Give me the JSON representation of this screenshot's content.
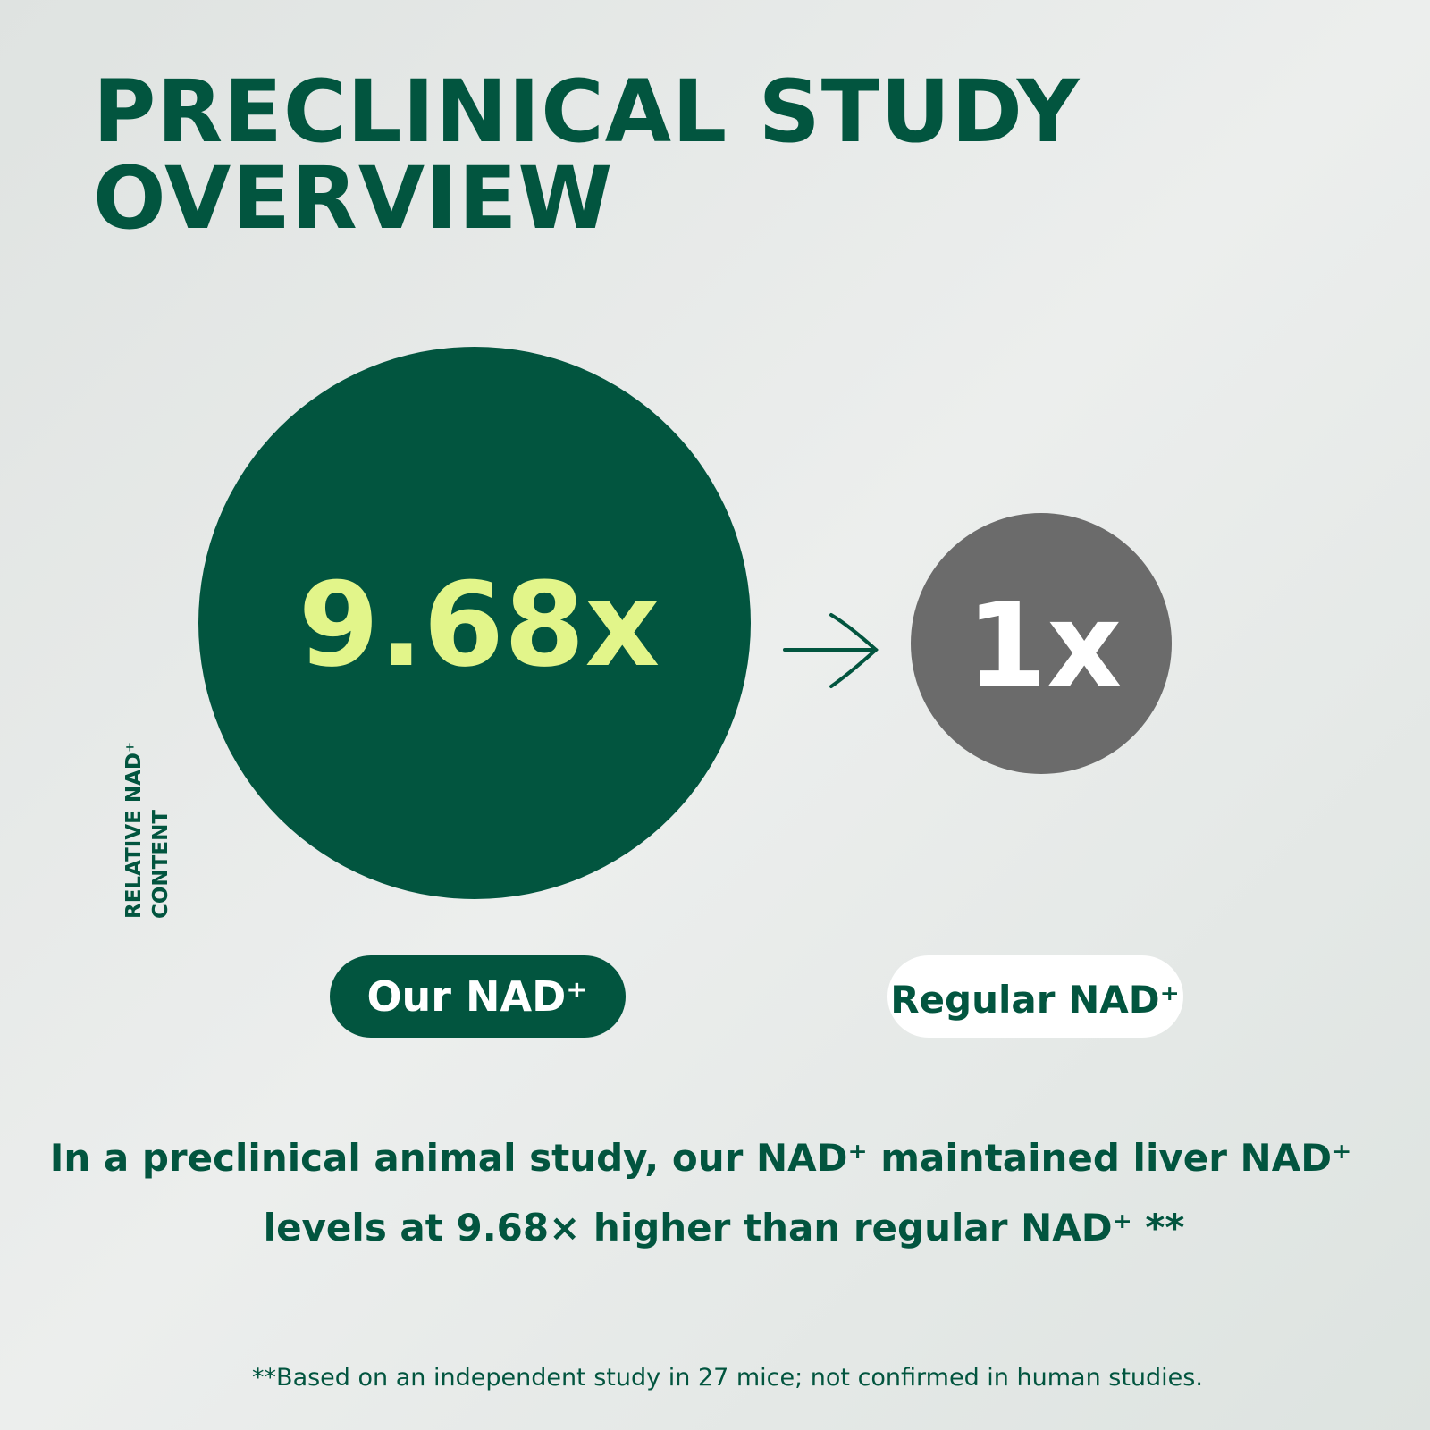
{
  "header": {
    "title_lines": [
      "PRECLINICAL STUDY",
      "OVERVIEW"
    ]
  },
  "axis_label_lines": [
    "RELATIVE NAD⁺",
    "CONTENT"
  ],
  "comparison": {
    "ours": {
      "value_text": "9.68x",
      "label": "Our NAD⁺"
    },
    "regular": {
      "value_text": "1x",
      "label": "Regular NAD⁺"
    }
  },
  "body_lines": [
    "In a preclinical animal study, our NAD⁺  maintained liver NAD⁺",
    "levels at 9.68× higher than regular NAD⁺ **"
  ],
  "footnote": "**Based on an independent study in 27 mice; not confirmed in human studies."
}
